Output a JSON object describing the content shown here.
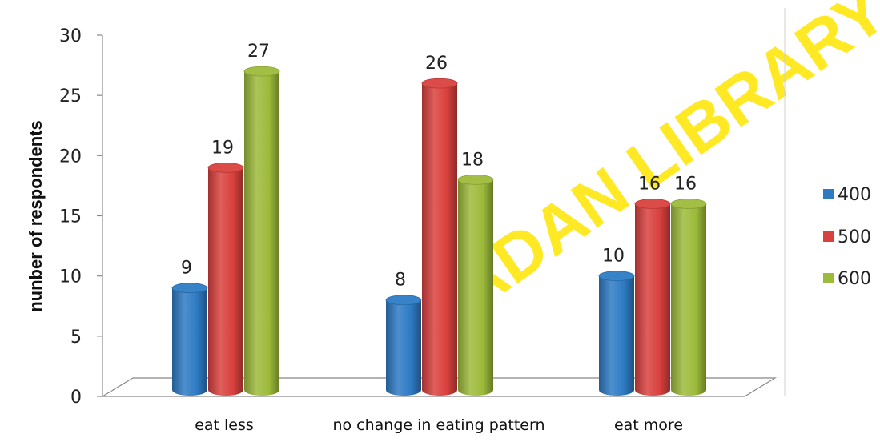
{
  "watermark": "ADAN LIBRARY",
  "chart_data": {
    "type": "bar",
    "title": "",
    "xlabel": "",
    "ylabel": "nunber of respondents",
    "ylim": [
      0,
      30
    ],
    "yticks": [
      0,
      5,
      10,
      15,
      20,
      25,
      30
    ],
    "categories": [
      "eat less",
      "no change in eating pattern",
      "eat more"
    ],
    "series": [
      {
        "name": "400",
        "values": [
          9,
          8,
          10
        ],
        "color": "#2E7BC4"
      },
      {
        "name": "500",
        "values": [
          19,
          26,
          16
        ],
        "color": "#D9413E"
      },
      {
        "name": "600",
        "values": [
          27,
          18,
          16
        ],
        "color": "#9DBB3A"
      }
    ],
    "legend_position": "right",
    "grid": false
  }
}
